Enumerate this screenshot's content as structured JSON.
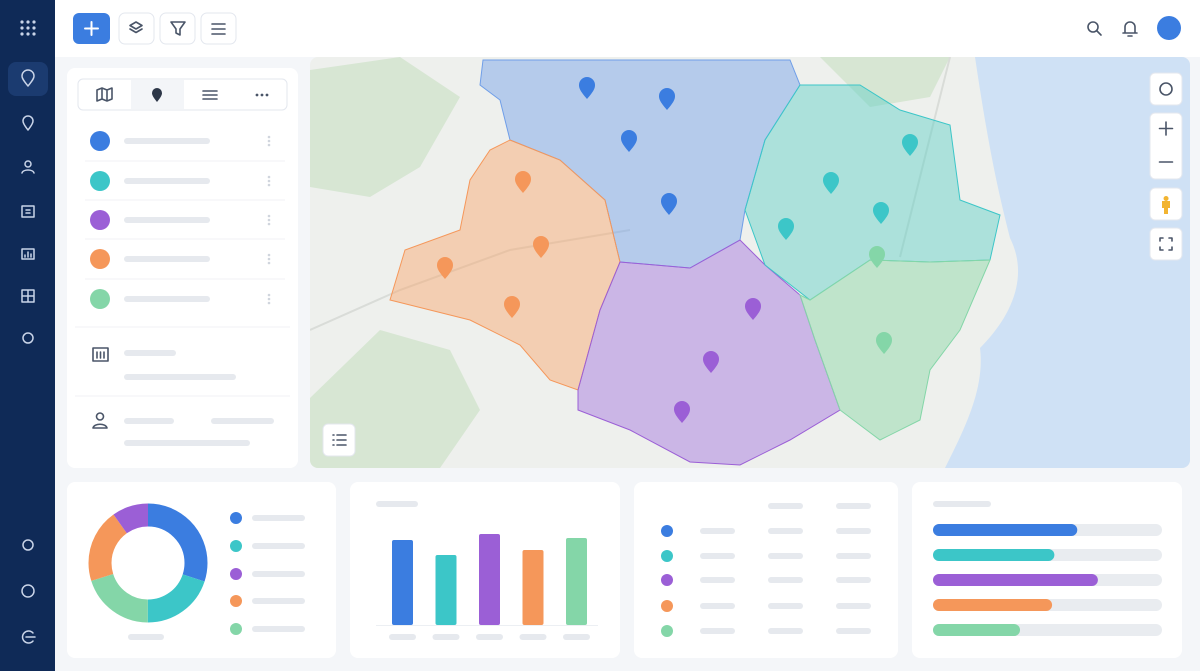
{
  "donut": {
    "values": [
      30,
      20,
      20,
      20,
      10
    ],
    "colors": [
      "#3b7de0",
      "#3cc6c8",
      "#84d6a8",
      "#f5975a",
      "#9b5fd6"
    ]
  },
  "bar_chart": {
    "values": [
      85,
      70,
      91,
      75,
      87
    ],
    "colors": [
      "#3b7de0",
      "#3cc6c8",
      "#9b5fd6",
      "#f5975a",
      "#84d6a8"
    ],
    "ylim": [
      0,
      100
    ]
  },
  "progress": {
    "values": [
      63,
      53,
      72,
      52,
      38
    ],
    "colors": [
      "#3b7de0",
      "#3cc6c8",
      "#9b5fd6",
      "#f5975a",
      "#84d6a8"
    ],
    "xlim": [
      0,
      100
    ]
  }
}
